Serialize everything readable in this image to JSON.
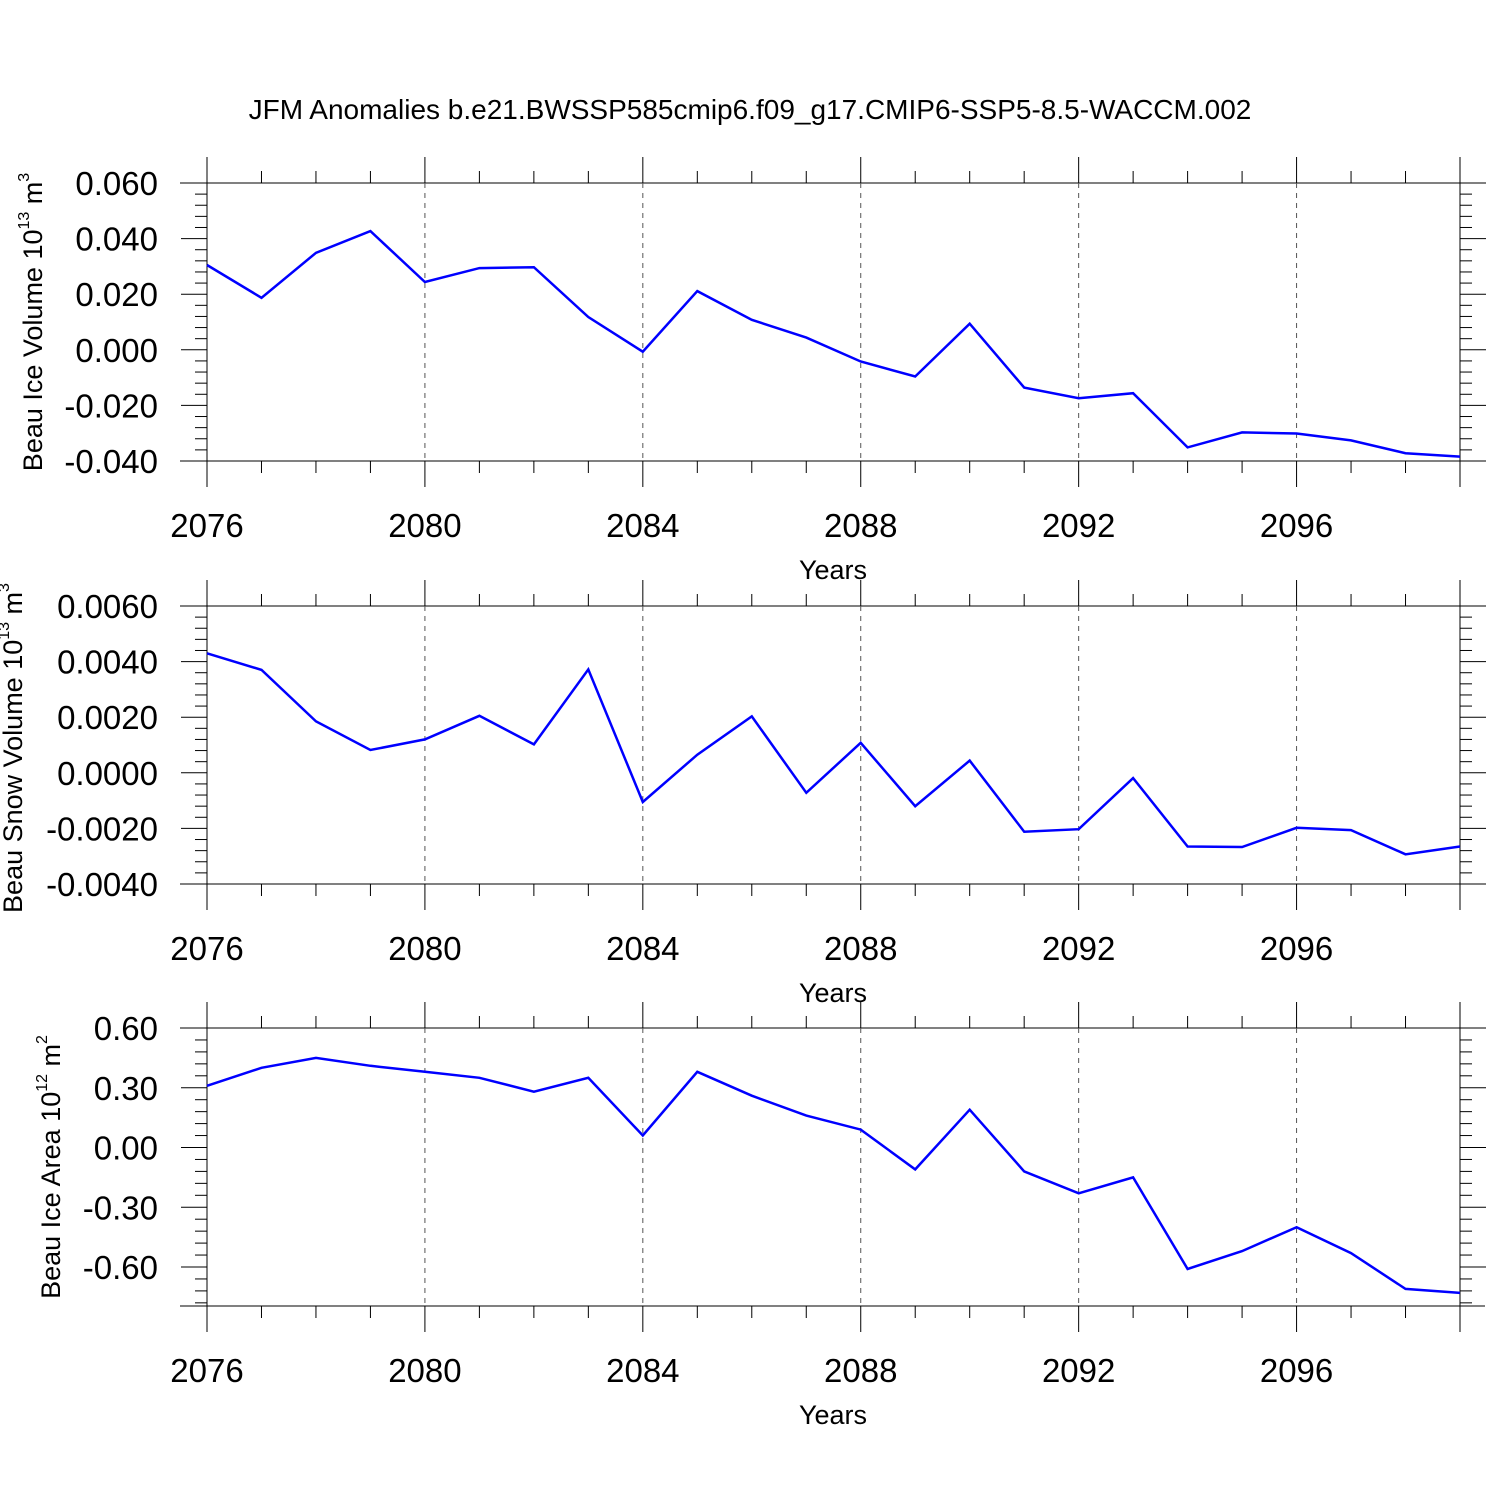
{
  "title": "JFM Anomalies b.e21.BWSSP585cmip6.f09_g17.CMIP6-SSP5-8.5-WACCM.002",
  "line_color": "#0000ff",
  "chart_data": [
    {
      "type": "line",
      "title": "",
      "xlabel": "Years",
      "ylabel": {
        "text": "Beau Ice Volume 10",
        "exp": "13",
        "unit": " m",
        "unit_exp": "3"
      },
      "x": [
        2076,
        2077,
        2078,
        2079,
        2080,
        2081,
        2082,
        2083,
        2084,
        2085,
        2086,
        2087,
        2088,
        2089,
        2090,
        2091,
        2092,
        2093,
        2094,
        2095,
        2096,
        2097,
        2098,
        2099
      ],
      "values": [
        0.0305,
        0.0187,
        0.0349,
        0.0427,
        0.0244,
        0.0294,
        0.0297,
        0.0118,
        -0.0007,
        0.0211,
        0.0108,
        0.0044,
        -0.0042,
        -0.0096,
        0.0094,
        -0.0136,
        -0.0174,
        -0.0156,
        -0.0351,
        -0.0297,
        -0.0301,
        -0.0326,
        -0.0372,
        -0.0384
      ],
      "xlim": [
        2076,
        2099
      ],
      "ylim": [
        -0.04,
        0.06
      ],
      "xticks": [
        "2076",
        "2080",
        "2084",
        "2088",
        "2092",
        "2096"
      ],
      "yticks": [
        "0.060",
        "0.040",
        "0.020",
        "0.000",
        "-0.020",
        "-0.040"
      ],
      "grid": "vertical dashed at major x ticks",
      "legend": "none"
    },
    {
      "type": "line",
      "title": "",
      "xlabel": "Years",
      "ylabel": {
        "text": "Beau Snow Volume 10",
        "exp": "13",
        "unit": " m",
        "unit_exp": "3"
      },
      "x": [
        2076,
        2077,
        2078,
        2079,
        2080,
        2081,
        2082,
        2083,
        2084,
        2085,
        2086,
        2087,
        2088,
        2089,
        2090,
        2091,
        2092,
        2093,
        2094,
        2095,
        2096,
        2097,
        2098,
        2099
      ],
      "values": [
        0.0043,
        0.0037,
        0.00185,
        0.00082,
        0.0012,
        0.00205,
        0.00102,
        0.00372,
        -0.00105,
        0.00065,
        0.00203,
        -0.00072,
        0.00108,
        -0.0012,
        0.00044,
        -0.00212,
        -0.00203,
        -0.00019,
        -0.00265,
        -0.00267,
        -0.00198,
        -0.00206,
        -0.00293,
        -0.00265
      ],
      "xlim": [
        2076,
        2099
      ],
      "ylim": [
        -0.004,
        0.006
      ],
      "xticks": [
        "2076",
        "2080",
        "2084",
        "2088",
        "2092",
        "2096"
      ],
      "yticks": [
        "0.0060",
        "0.0040",
        "0.0020",
        "0.0000",
        "-0.0020",
        "-0.0040"
      ],
      "grid": "vertical dashed at major x ticks",
      "legend": "none"
    },
    {
      "type": "line",
      "title": "",
      "xlabel": "Years",
      "ylabel": {
        "text": "Beau Ice Area 10",
        "exp": "12",
        "unit": " m",
        "unit_exp": "2"
      },
      "x": [
        2076,
        2077,
        2078,
        2079,
        2080,
        2081,
        2082,
        2083,
        2084,
        2085,
        2086,
        2087,
        2088,
        2089,
        2090,
        2091,
        2092,
        2093,
        2094,
        2095,
        2096,
        2097,
        2098,
        2099
      ],
      "values": [
        0.31,
        0.4,
        0.45,
        0.41,
        0.38,
        0.35,
        0.28,
        0.35,
        0.06,
        0.38,
        0.26,
        0.16,
        0.09,
        -0.11,
        0.19,
        -0.12,
        -0.23,
        -0.15,
        -0.61,
        -0.52,
        -0.4,
        -0.53,
        -0.71,
        -0.73
      ],
      "xlim": [
        2076,
        2099
      ],
      "ylim": [
        -0.8,
        0.6
      ],
      "xticks": [
        "2076",
        "2080",
        "2084",
        "2088",
        "2092",
        "2096"
      ],
      "yticks": [
        "0.60",
        "0.30",
        "0.00",
        "-0.30",
        "-0.60"
      ],
      "grid": "vertical dashed at major x ticks",
      "legend": "none"
    }
  ]
}
